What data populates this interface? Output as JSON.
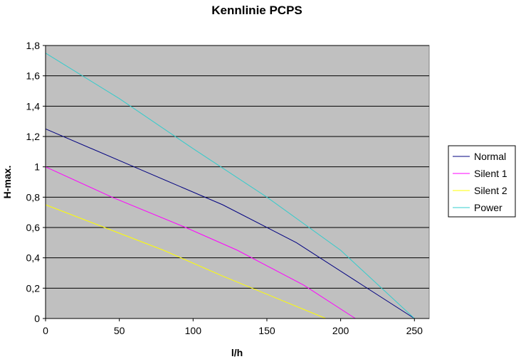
{
  "chart_data": {
    "type": "line",
    "title": "Kennlinie PCPS",
    "xlabel": "l/h",
    "ylabel": "H-max.",
    "xlim": [
      0,
      260
    ],
    "ylim": [
      0,
      1.8
    ],
    "x_ticks": [
      "0",
      "50",
      "100",
      "150",
      "200",
      "250"
    ],
    "x_tick_values": [
      0,
      50,
      100,
      150,
      200,
      250
    ],
    "y_ticks": [
      "0",
      "0,2",
      "0,4",
      "0,6",
      "0,8",
      "1",
      "1,2",
      "1,4",
      "1,6",
      "1,8"
    ],
    "y_tick_values": [
      0,
      0.2,
      0.4,
      0.6,
      0.8,
      1.0,
      1.2,
      1.4,
      1.6,
      1.8
    ],
    "grid": "horizontal",
    "plot_background": "#c0c0c0",
    "legend_position": "right",
    "series": [
      {
        "name": "Normal",
        "color": "#000080",
        "points": [
          [
            0,
            1.25
          ],
          [
            60,
            1.0
          ],
          [
            120,
            0.75
          ],
          [
            170,
            0.5
          ],
          [
            210,
            0.25
          ],
          [
            250,
            0.0
          ]
        ]
      },
      {
        "name": "Silent 1",
        "color": "#ff00ff",
        "points": [
          [
            0,
            1.0
          ],
          [
            45,
            0.8
          ],
          [
            95,
            0.6
          ],
          [
            130,
            0.45
          ],
          [
            175,
            0.22
          ],
          [
            210,
            0.0
          ]
        ]
      },
      {
        "name": "Silent 2",
        "color": "#ffff00",
        "points": [
          [
            0,
            0.75
          ],
          [
            40,
            0.6
          ],
          [
            80,
            0.45
          ],
          [
            120,
            0.28
          ],
          [
            160,
            0.12
          ],
          [
            190,
            0.0
          ]
        ]
      },
      {
        "name": "Power",
        "color": "#33cccc",
        "points": [
          [
            0,
            1.75
          ],
          [
            50,
            1.45
          ],
          [
            100,
            1.12
          ],
          [
            150,
            0.8
          ],
          [
            200,
            0.45
          ],
          [
            250,
            0.0
          ]
        ]
      }
    ]
  }
}
